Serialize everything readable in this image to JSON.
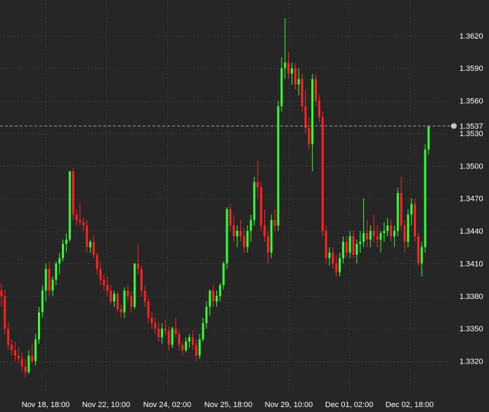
{
  "colors": {
    "background": "#262626",
    "grid": "#3a3a3a",
    "up": "#33ff33",
    "down": "#ff2222",
    "axis_text": "#ffffff",
    "price_line": "#9a9a9a",
    "price_marker": "#c8c8c8"
  },
  "chart_data": {
    "type": "candlestick",
    "grid": true,
    "ylim": [
      1.3295,
      1.3637
    ],
    "y_ticks": [
      "1.3320",
      "1.3350",
      "1.3380",
      "1.3410",
      "1.3440",
      "1.3470",
      "1.3500",
      "1.3530",
      "1.3560",
      "1.3590",
      "1.3620"
    ],
    "x_ticks": [
      "Nov 18, 18:00",
      "Nov 22, 10:00",
      "Nov 24, 02:00",
      "Nov 25, 18:00",
      "Nov 29, 10:00",
      "Dec 01, 02:00",
      "Dec 02, 18:00"
    ],
    "current_price": "1.3537",
    "candles": [
      [
        1.3385,
        1.3392,
        1.337,
        1.338
      ],
      [
        1.338,
        1.3386,
        1.3345,
        1.335
      ],
      [
        1.335,
        1.3356,
        1.333,
        1.3335
      ],
      [
        1.3335,
        1.334,
        1.3325,
        1.333
      ],
      [
        1.333,
        1.3338,
        1.332,
        1.3325
      ],
      [
        1.3325,
        1.3333,
        1.3318,
        1.3322
      ],
      [
        1.3322,
        1.3328,
        1.331,
        1.3315
      ],
      [
        1.3315,
        1.3322,
        1.3305,
        1.331
      ],
      [
        1.331,
        1.333,
        1.3308,
        1.3325
      ],
      [
        1.3325,
        1.3336,
        1.3318,
        1.332
      ],
      [
        1.332,
        1.3345,
        1.3316,
        1.334
      ],
      [
        1.334,
        1.337,
        1.3336,
        1.3365
      ],
      [
        1.3365,
        1.339,
        1.336,
        1.3385
      ],
      [
        1.3385,
        1.341,
        1.3375,
        1.3405
      ],
      [
        1.3405,
        1.3412,
        1.338,
        1.3385
      ],
      [
        1.3385,
        1.3398,
        1.338,
        1.3395
      ],
      [
        1.3395,
        1.3412,
        1.339,
        1.341
      ],
      [
        1.341,
        1.342,
        1.34,
        1.3415
      ],
      [
        1.3415,
        1.3432,
        1.3412,
        1.3428
      ],
      [
        1.3428,
        1.3438,
        1.342,
        1.3432
      ],
      [
        1.3432,
        1.3495,
        1.343,
        1.3495
      ],
      [
        1.3495,
        1.3498,
        1.345,
        1.3455
      ],
      [
        1.3455,
        1.346,
        1.3445,
        1.345
      ],
      [
        1.345,
        1.3465,
        1.3445,
        1.3448
      ],
      [
        1.3448,
        1.3452,
        1.344,
        1.3445
      ],
      [
        1.3445,
        1.345,
        1.342,
        1.3425
      ],
      [
        1.3425,
        1.3432,
        1.342,
        1.343
      ],
      [
        1.343,
        1.3436,
        1.3415,
        1.3418
      ],
      [
        1.3418,
        1.342,
        1.34,
        1.3405
      ],
      [
        1.3405,
        1.3412,
        1.339,
        1.3395
      ],
      [
        1.3395,
        1.34,
        1.3385,
        1.339
      ],
      [
        1.339,
        1.3398,
        1.338,
        1.3385
      ],
      [
        1.3385,
        1.339,
        1.3372,
        1.3375
      ],
      [
        1.3375,
        1.3385,
        1.337,
        1.3382
      ],
      [
        1.3382,
        1.3384,
        1.3365,
        1.3368
      ],
      [
        1.3368,
        1.3372,
        1.336,
        1.3365
      ],
      [
        1.3365,
        1.3388,
        1.336,
        1.3385
      ],
      [
        1.3385,
        1.339,
        1.3375,
        1.338
      ],
      [
        1.338,
        1.3384,
        1.3365,
        1.337
      ],
      [
        1.337,
        1.341,
        1.3368,
        1.341
      ],
      [
        1.341,
        1.3428,
        1.34,
        1.3405
      ],
      [
        1.3405,
        1.3408,
        1.338,
        1.3385
      ],
      [
        1.3385,
        1.339,
        1.337,
        1.3375
      ],
      [
        1.3375,
        1.3378,
        1.3355,
        1.336
      ],
      [
        1.336,
        1.3365,
        1.335,
        1.3355
      ],
      [
        1.3355,
        1.336,
        1.3345,
        1.335
      ],
      [
        1.335,
        1.3356,
        1.3338,
        1.3342
      ],
      [
        1.3342,
        1.3355,
        1.3336,
        1.335
      ],
      [
        1.335,
        1.3358,
        1.3344,
        1.3348
      ],
      [
        1.3348,
        1.3352,
        1.333,
        1.3335
      ],
      [
        1.3335,
        1.3352,
        1.3332,
        1.335
      ],
      [
        1.335,
        1.336,
        1.3342,
        1.3345
      ],
      [
        1.3345,
        1.3348,
        1.333,
        1.3335
      ],
      [
        1.3335,
        1.3338,
        1.3325,
        1.333
      ],
      [
        1.333,
        1.3342,
        1.3328,
        1.3338
      ],
      [
        1.3338,
        1.3345,
        1.3332,
        1.3342
      ],
      [
        1.3342,
        1.3348,
        1.333,
        1.3335
      ],
      [
        1.3335,
        1.334,
        1.332,
        1.3325
      ],
      [
        1.3325,
        1.3345,
        1.3322,
        1.334
      ],
      [
        1.334,
        1.336,
        1.3338,
        1.3355
      ],
      [
        1.3355,
        1.3375,
        1.335,
        1.337
      ],
      [
        1.337,
        1.3386,
        1.3362,
        1.3385
      ],
      [
        1.3385,
        1.339,
        1.337,
        1.3375
      ],
      [
        1.3375,
        1.3385,
        1.337,
        1.338
      ],
      [
        1.338,
        1.3392,
        1.3375,
        1.339
      ],
      [
        1.339,
        1.3412,
        1.3386,
        1.341
      ],
      [
        1.341,
        1.3462,
        1.3405,
        1.346
      ],
      [
        1.346,
        1.3465,
        1.344,
        1.3445
      ],
      [
        1.3445,
        1.3455,
        1.343,
        1.3435
      ],
      [
        1.3435,
        1.3445,
        1.3425,
        1.344
      ],
      [
        1.344,
        1.345,
        1.343,
        1.3435
      ],
      [
        1.3435,
        1.3442,
        1.342,
        1.3425
      ],
      [
        1.3425,
        1.3445,
        1.342,
        1.344
      ],
      [
        1.344,
        1.3455,
        1.343,
        1.345
      ],
      [
        1.345,
        1.349,
        1.3445,
        1.3485
      ],
      [
        1.3485,
        1.3505,
        1.347,
        1.348
      ],
      [
        1.348,
        1.3485,
        1.344,
        1.3445
      ],
      [
        1.3445,
        1.346,
        1.343,
        1.3435
      ],
      [
        1.3435,
        1.344,
        1.341,
        1.342
      ],
      [
        1.342,
        1.3455,
        1.3415,
        1.345
      ],
      [
        1.345,
        1.346,
        1.344,
        1.3445
      ],
      [
        1.3445,
        1.356,
        1.344,
        1.3555
      ],
      [
        1.3555,
        1.36,
        1.355,
        1.359
      ],
      [
        1.359,
        1.3636,
        1.358,
        1.3595
      ],
      [
        1.3595,
        1.3605,
        1.358,
        1.3585
      ],
      [
        1.3585,
        1.3595,
        1.3575,
        1.359
      ],
      [
        1.359,
        1.3595,
        1.357,
        1.3575
      ],
      [
        1.3575,
        1.359,
        1.3565,
        1.358
      ],
      [
        1.358,
        1.3585,
        1.355,
        1.3555
      ],
      [
        1.3555,
        1.357,
        1.353,
        1.3535
      ],
      [
        1.3535,
        1.3545,
        1.3515,
        1.352
      ],
      [
        1.352,
        1.3585,
        1.3495,
        1.358
      ],
      [
        1.358,
        1.3585,
        1.3555,
        1.356
      ],
      [
        1.356,
        1.3565,
        1.354,
        1.3545
      ],
      [
        1.3545,
        1.355,
        1.3435,
        1.344
      ],
      [
        1.344,
        1.3445,
        1.341,
        1.3415
      ],
      [
        1.3415,
        1.3425,
        1.3408,
        1.342
      ],
      [
        1.342,
        1.3425,
        1.3405,
        1.341
      ],
      [
        1.341,
        1.3418,
        1.3398,
        1.3402
      ],
      [
        1.3402,
        1.342,
        1.3398,
        1.3415
      ],
      [
        1.3415,
        1.3435,
        1.341,
        1.343
      ],
      [
        1.343,
        1.3435,
        1.3415,
        1.342
      ],
      [
        1.342,
        1.344,
        1.3415,
        1.3435
      ],
      [
        1.3435,
        1.344,
        1.3415,
        1.3418
      ],
      [
        1.3418,
        1.3432,
        1.341,
        1.3428
      ],
      [
        1.3428,
        1.344,
        1.342,
        1.343
      ],
      [
        1.343,
        1.347,
        1.3425,
        1.3438
      ],
      [
        1.3438,
        1.345,
        1.3425,
        1.3432
      ],
      [
        1.3432,
        1.3445,
        1.3425,
        1.344
      ],
      [
        1.344,
        1.3455,
        1.343,
        1.3435
      ],
      [
        1.3435,
        1.3445,
        1.3425,
        1.3432
      ],
      [
        1.3432,
        1.344,
        1.342,
        1.3438
      ],
      [
        1.3438,
        1.3448,
        1.343,
        1.344
      ],
      [
        1.344,
        1.3452,
        1.3435,
        1.3445
      ],
      [
        1.3445,
        1.345,
        1.343,
        1.3435
      ],
      [
        1.3435,
        1.3445,
        1.3425,
        1.344
      ],
      [
        1.344,
        1.348,
        1.3435,
        1.3475
      ],
      [
        1.3475,
        1.349,
        1.344,
        1.3445
      ],
      [
        1.3445,
        1.345,
        1.342,
        1.343
      ],
      [
        1.343,
        1.346,
        1.3425,
        1.3455
      ],
      [
        1.3455,
        1.347,
        1.3445,
        1.3465
      ],
      [
        1.3465,
        1.347,
        1.343,
        1.3435
      ],
      [
        1.3435,
        1.3438,
        1.3408,
        1.341
      ],
      [
        1.341,
        1.343,
        1.3398,
        1.3425
      ],
      [
        1.3425,
        1.352,
        1.342,
        1.3515
      ],
      [
        1.3515,
        1.3537,
        1.351,
        1.3537
      ]
    ]
  }
}
